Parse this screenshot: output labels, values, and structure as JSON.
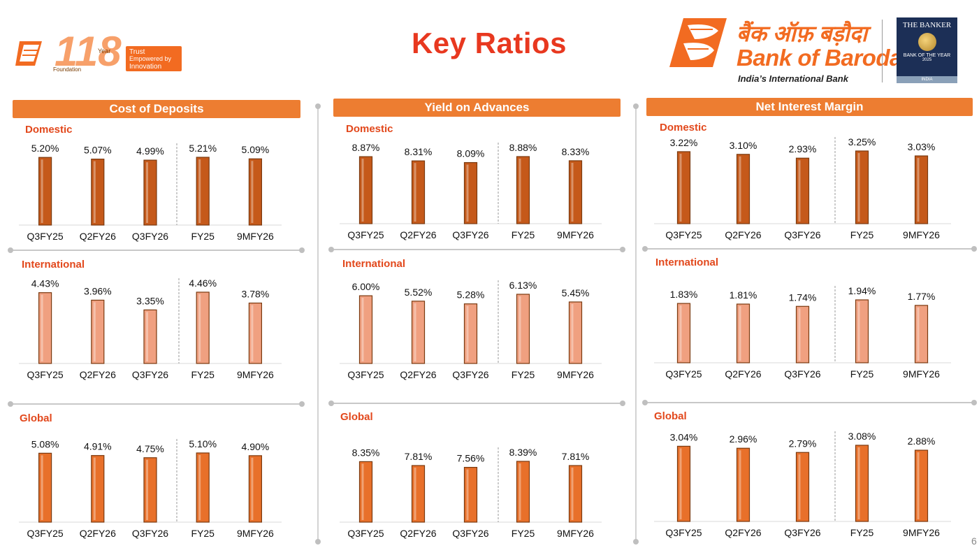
{
  "page_title": "Key Ratios",
  "page_number": "6",
  "logo_left": {
    "number": "118",
    "year_label": "Year",
    "foundation_label": "Foundation",
    "tagline_1": "Trust",
    "tagline_2": "Empowered by",
    "tagline_3": "Innovation"
  },
  "brand": {
    "name_hindi": "बैंक ऑफ़ बड़ौदा",
    "name_english": "Bank of Baroda",
    "tagline": "India’s International Bank"
  },
  "banker_badge": {
    "title": "THE BANKER",
    "line1": "BANK OF THE YEAR",
    "year": "2025",
    "country": "INDIA"
  },
  "colors": {
    "header_bg": "#ed7d31",
    "section_label": "#e2481c",
    "domestic_bar": "#c5591a",
    "international_bar": "#f0a080",
    "global_bar": "#e8702a"
  },
  "panels": [
    {
      "header": "Cost of Deposits"
    },
    {
      "header": "Yield on Advances"
    },
    {
      "header": "Net Interest Margin"
    }
  ],
  "chart_data": [
    {
      "type": "bar",
      "panel": "Cost of Deposits",
      "series_label": "Domestic",
      "categories": [
        "Q3FY25",
        "Q2FY26",
        "Q3FY26",
        "FY25",
        "9MFY26"
      ],
      "values": [
        5.2,
        5.07,
        4.99,
        5.21,
        5.09
      ],
      "labels": [
        "5.20%",
        "5.07%",
        "4.99%",
        "5.21%",
        "5.09%"
      ],
      "ylim": [
        0,
        5.6
      ]
    },
    {
      "type": "bar",
      "panel": "Cost of Deposits",
      "series_label": "International",
      "categories": [
        "Q3FY25",
        "Q2FY26",
        "Q3FY26",
        "FY25",
        "9MFY26"
      ],
      "values": [
        4.43,
        3.96,
        3.35,
        4.46,
        3.78
      ],
      "labels": [
        "4.43%",
        "3.96%",
        "3.35%",
        "4.46%",
        "3.78%"
      ],
      "ylim": [
        0,
        4.9
      ]
    },
    {
      "type": "bar",
      "panel": "Cost of Deposits",
      "series_label": "Global",
      "categories": [
        "Q3FY25",
        "Q2FY26",
        "Q3FY26",
        "FY25",
        "9MFY26"
      ],
      "values": [
        5.08,
        4.91,
        4.75,
        5.1,
        4.9
      ],
      "labels": [
        "5.08%",
        "4.91%",
        "4.75%",
        "5.10%",
        "4.90%"
      ],
      "ylim": [
        0,
        5.6
      ]
    },
    {
      "type": "bar",
      "panel": "Yield on Advances",
      "series_label": "Domestic",
      "categories": [
        "Q3FY25",
        "Q2FY26",
        "Q3FY26",
        "FY25",
        "9MFY26"
      ],
      "values": [
        8.87,
        8.31,
        8.09,
        8.88,
        8.33
      ],
      "labels": [
        "8.87%",
        "8.31%",
        "8.09%",
        "8.88%",
        "8.33%"
      ],
      "ylim": [
        0,
        10.5
      ]
    },
    {
      "type": "bar",
      "panel": "Yield on Advances",
      "series_label": "International",
      "categories": [
        "Q3FY25",
        "Q2FY26",
        "Q3FY26",
        "FY25",
        "9MFY26"
      ],
      "values": [
        6.0,
        5.52,
        5.28,
        6.13,
        5.45
      ],
      "labels": [
        "6.00%",
        "5.52%",
        "5.28%",
        "6.13%",
        "5.45%"
      ],
      "ylim": [
        0,
        7.0
      ]
    },
    {
      "type": "bar",
      "panel": "Yield on Advances",
      "series_label": "Global",
      "categories": [
        "Q3FY25",
        "Q2FY26",
        "Q3FY26",
        "FY25",
        "9MFY26"
      ],
      "values": [
        8.35,
        7.81,
        7.56,
        8.39,
        7.81
      ],
      "labels": [
        "8.35%",
        "7.81%",
        "7.56%",
        "8.39%",
        "7.81%"
      ],
      "ylim": [
        0,
        10.5
      ]
    },
    {
      "type": "bar",
      "panel": "Net Interest Margin",
      "series_label": "Domestic",
      "categories": [
        "Q3FY25",
        "Q2FY26",
        "Q3FY26",
        "FY25",
        "9MFY26"
      ],
      "values": [
        3.22,
        3.1,
        2.93,
        3.25,
        3.03
      ],
      "labels": [
        "3.22%",
        "3.10%",
        "2.93%",
        "3.25%",
        "3.03%"
      ],
      "ylim": [
        0,
        3.5
      ]
    },
    {
      "type": "bar",
      "panel": "Net Interest Margin",
      "series_label": "International",
      "categories": [
        "Q3FY25",
        "Q2FY26",
        "Q3FY26",
        "FY25",
        "9MFY26"
      ],
      "values": [
        1.83,
        1.81,
        1.74,
        1.94,
        1.77
      ],
      "labels": [
        "1.83%",
        "1.81%",
        "1.74%",
        "1.94%",
        "1.77%"
      ],
      "ylim": [
        0,
        2.25
      ]
    },
    {
      "type": "bar",
      "panel": "Net Interest Margin",
      "series_label": "Global",
      "categories": [
        "Q3FY25",
        "Q2FY26",
        "Q3FY26",
        "FY25",
        "9MFY26"
      ],
      "values": [
        3.04,
        2.96,
        2.79,
        3.08,
        2.88
      ],
      "labels": [
        "3.04%",
        "2.96%",
        "2.79%",
        "3.08%",
        "2.88%"
      ],
      "ylim": [
        0,
        3.6
      ]
    }
  ]
}
